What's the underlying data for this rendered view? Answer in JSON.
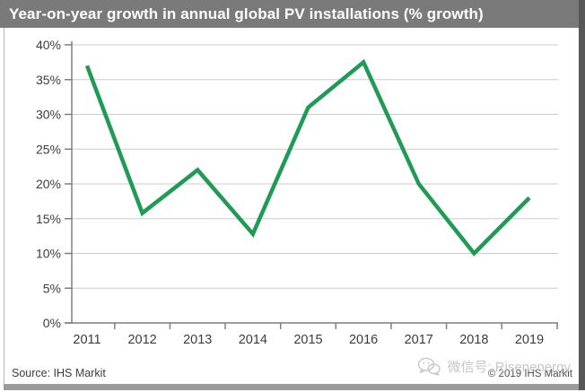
{
  "header": {
    "title": "Year-on-year growth in annual global PV installations (% growth)"
  },
  "chart_data": {
    "type": "line",
    "title": "Year-on-year growth in annual global PV installations (% growth)",
    "categories": [
      "2011",
      "2012",
      "2013",
      "2014",
      "2015",
      "2016",
      "2017",
      "2018",
      "2019"
    ],
    "series": [
      {
        "name": "Year-on-year growth of annual global PV installations (%)",
        "values": [
          37,
          15.8,
          22,
          12.8,
          31,
          37.5,
          20,
          10,
          18
        ]
      }
    ],
    "xlabel": "",
    "ylabel": "",
    "ylim": [
      0,
      40
    ],
    "ytick_step": 5,
    "ytick_labels": [
      "0%",
      "5%",
      "10%",
      "15%",
      "20%",
      "25%",
      "30%",
      "35%",
      "40%"
    ],
    "grid": true,
    "legend_position": "none"
  },
  "footer": {
    "source": "Source: IHS Markit",
    "copyright": "© 2019 IHS Markit",
    "watermark_label": "微信号: Risenenergy"
  },
  "colors": {
    "header_bg": "#7a7a7a",
    "header_text": "#ffffff",
    "line": "#1f9b55",
    "grid": "#cbcbcb",
    "axis": "#7f7f7f",
    "tick_text": "#3c3c3c",
    "source_text": "#3d3d3d",
    "copyright_text": "#4f4f4f",
    "watermark": "#c6c6c6"
  }
}
